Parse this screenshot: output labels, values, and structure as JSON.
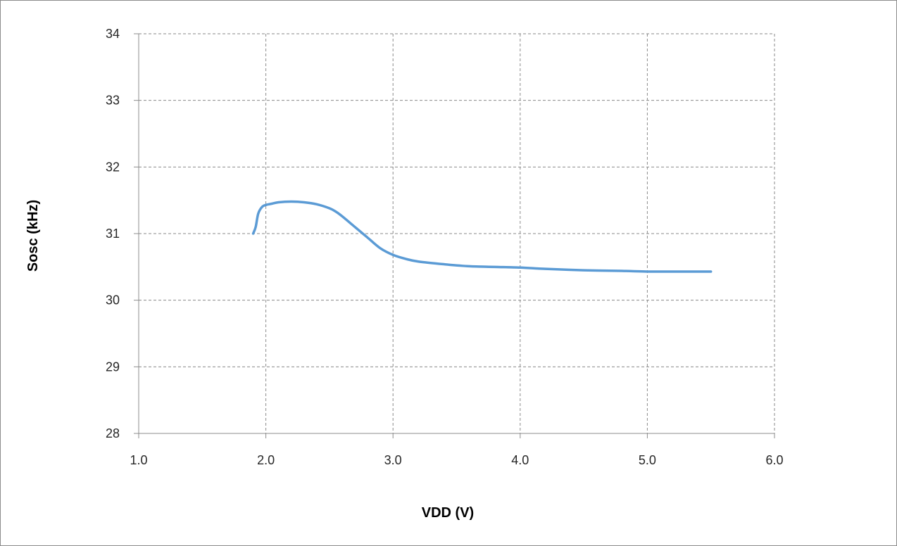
{
  "chart_data": {
    "type": "line",
    "title": "",
    "xlabel": "VDD (V)",
    "ylabel": "Sosc (kHz)",
    "xlim": [
      1.0,
      6.0
    ],
    "ylim": [
      28,
      34
    ],
    "x_ticks": [
      "1.0",
      "2.0",
      "3.0",
      "4.0",
      "5.0",
      "6.0"
    ],
    "y_ticks": [
      "28",
      "29",
      "30",
      "31",
      "32",
      "33",
      "34"
    ],
    "grid": true,
    "legend": "none",
    "series": [
      {
        "color": "#5b9bd5",
        "x": [
          1.9,
          1.92,
          1.94,
          1.97,
          2.0,
          2.05,
          2.1,
          2.2,
          2.3,
          2.4,
          2.5,
          2.55,
          2.6,
          2.7,
          2.8,
          2.9,
          3.0,
          3.1,
          3.2,
          3.4,
          3.6,
          3.8,
          4.0,
          4.2,
          4.5,
          4.8,
          5.0,
          5.2,
          5.5
        ],
        "y": [
          31.0,
          31.1,
          31.3,
          31.4,
          31.43,
          31.45,
          31.47,
          31.48,
          31.47,
          31.44,
          31.38,
          31.33,
          31.26,
          31.1,
          30.94,
          30.78,
          30.68,
          30.62,
          30.58,
          30.54,
          30.51,
          30.5,
          30.49,
          30.47,
          30.45,
          30.44,
          30.43,
          30.43,
          30.43
        ]
      }
    ]
  }
}
